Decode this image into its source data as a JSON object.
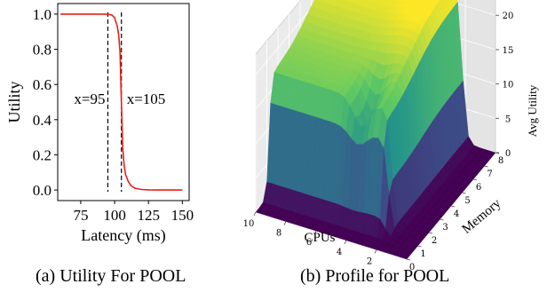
{
  "captions": {
    "a": "(a) Utility For POOL",
    "b": "(b) Profile for POOL"
  },
  "chart_data": [
    {
      "type": "line",
      "title": "",
      "xlabel": "Latency (ms)",
      "ylabel": "Utility",
      "xlim": [
        58,
        155
      ],
      "ylim": [
        -0.06,
        1.06
      ],
      "xticks": [
        75,
        100,
        125,
        150
      ],
      "yticks": [
        0.0,
        0.2,
        0.4,
        0.6,
        0.8,
        1.0
      ],
      "xtick_labels": [
        "75",
        "100",
        "125",
        "150"
      ],
      "ytick_labels": [
        "0.0",
        "0.2",
        "0.4",
        "0.6",
        "0.8",
        "1.0"
      ],
      "grid": false,
      "series": [
        {
          "color": "#e8201a",
          "x": [
            60,
            90,
            95,
            98,
            100,
            102,
            103,
            104,
            105,
            106,
            107,
            108,
            110,
            112,
            115,
            120,
            125,
            130,
            140,
            150
          ],
          "y": [
            1.0,
            1.0,
            0.999,
            0.995,
            0.98,
            0.93,
            0.88,
            0.78,
            0.5,
            0.24,
            0.14,
            0.09,
            0.05,
            0.025,
            0.01,
            0.003,
            0.001,
            0.0,
            0.0,
            0.0
          ]
        }
      ],
      "annotations": [
        {
          "type": "vline",
          "x": 95,
          "style": "dashed",
          "label": "x=95"
        },
        {
          "type": "vline",
          "x": 105,
          "style": "dashed",
          "label": "x=105"
        }
      ]
    },
    {
      "type": "surface",
      "title": "",
      "xlabel": "CPUs",
      "ylabel": "Memory",
      "zlabel": "Avg Utility",
      "xlim": [
        0,
        10
      ],
      "ylim": [
        0,
        8
      ],
      "zlim": [
        0,
        23
      ],
      "xticks": [
        2,
        4,
        6,
        8,
        10
      ],
      "yticks": [
        0,
        1,
        2,
        3,
        4,
        5,
        6,
        7,
        8
      ],
      "zticks": [
        0,
        5,
        10,
        15,
        20
      ],
      "xtick_labels": [
        "2",
        "4",
        "6",
        "8",
        "10"
      ],
      "ytick_labels": [
        "0",
        "1",
        "2",
        "3",
        "4",
        "5",
        "6",
        "7",
        "8"
      ],
      "ztick_labels": [
        "0",
        "5",
        "10",
        "15",
        "20"
      ],
      "colormap": "viridis",
      "plateau_value": 22,
      "cpu_threshold": 2.2,
      "memory_threshold": 1.2
    }
  ]
}
